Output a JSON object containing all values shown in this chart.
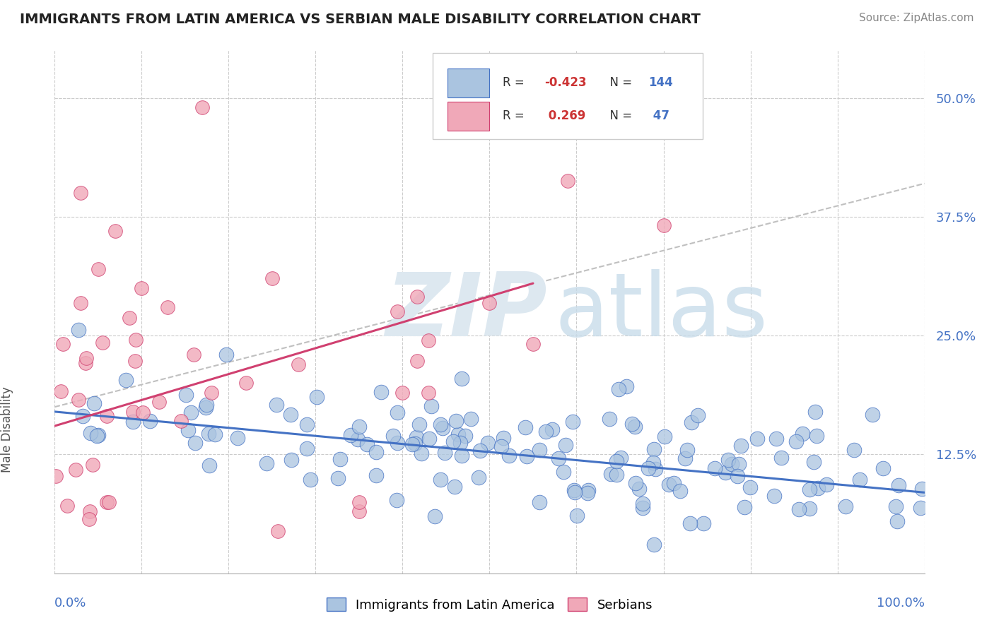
{
  "title": "IMMIGRANTS FROM LATIN AMERICA VS SERBIAN MALE DISABILITY CORRELATION CHART",
  "source": "Source: ZipAtlas.com",
  "ylabel": "Male Disability",
  "y_ticks": [
    0.125,
    0.25,
    0.375,
    0.5
  ],
  "y_tick_labels": [
    "12.5%",
    "25.0%",
    "37.5%",
    "50.0%"
  ],
  "x_lim": [
    0.0,
    1.0
  ],
  "y_lim": [
    0.0,
    0.55
  ],
  "color_blue": "#aac4e0",
  "color_pink": "#f0a8b8",
  "trend_blue": "#4472c4",
  "trend_pink": "#d04070",
  "trend_dashed_color": "#c0c0c0",
  "background": "#ffffff",
  "grid_color": "#cccccc",
  "blue_trend_start_x": 0.0,
  "blue_trend_start_y": 0.17,
  "blue_trend_end_x": 1.0,
  "blue_trend_end_y": 0.085,
  "pink_trend_start_x": 0.0,
  "pink_trend_start_y": 0.155,
  "pink_trend_end_x": 0.55,
  "pink_trend_end_y": 0.305,
  "dashed_trend_start_x": 0.0,
  "dashed_trend_start_y": 0.175,
  "dashed_trend_end_x": 1.0,
  "dashed_trend_end_y": 0.41
}
